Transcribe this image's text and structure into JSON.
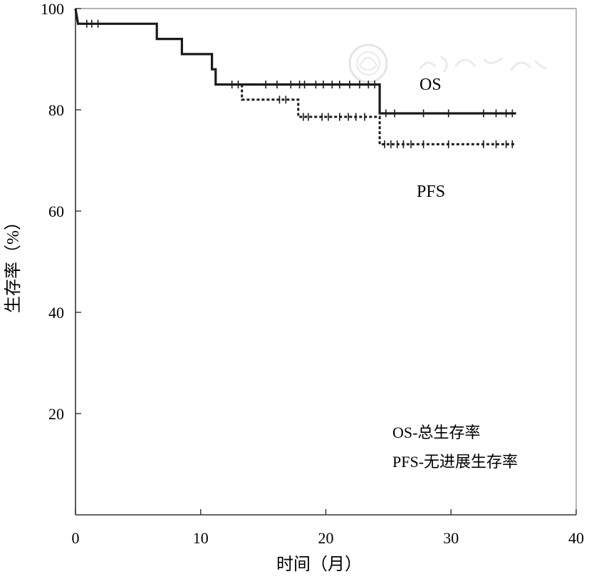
{
  "colors": {
    "line": "#1a1a1a",
    "axis": "#333333",
    "frame": "#888888",
    "watermark": "#d8d8d8"
  },
  "chart_data": {
    "type": "line",
    "title": "",
    "xlabel": "时间（月）",
    "ylabel": "生存率（%）",
    "xlim": [
      0,
      40
    ],
    "ylim": [
      0,
      100
    ],
    "x_ticks": [
      "0",
      "10",
      "20",
      "30",
      "40"
    ],
    "y_ticks": [
      "20",
      "40",
      "60",
      "80",
      "100"
    ],
    "series": [
      {
        "name": "OS",
        "style": "solid",
        "steps": [
          [
            0,
            100
          ],
          [
            0.2,
            97
          ],
          [
            6.5,
            97
          ],
          [
            6.5,
            94
          ],
          [
            8.5,
            94
          ],
          [
            8.5,
            91
          ],
          [
            10.9,
            91
          ],
          [
            10.9,
            88
          ],
          [
            11.2,
            88
          ],
          [
            11.2,
            85
          ],
          [
            24.3,
            85
          ],
          [
            24.3,
            79.3
          ],
          [
            35.2,
            79.3
          ]
        ],
        "censored": [
          0.9,
          1.3,
          1.8,
          12.5,
          13.0,
          15.2,
          16.1,
          17.2,
          17.9,
          18.3,
          19.2,
          19.8,
          20.5,
          21.1,
          21.9,
          22.7,
          23.4,
          23.9,
          24.8,
          25.5,
          27.8,
          29.8,
          32.6,
          33.6,
          34.4,
          34.9
        ]
      },
      {
        "name": "PFS",
        "style": "dotted",
        "steps": [
          [
            13.3,
            85
          ],
          [
            13.3,
            82
          ],
          [
            17.8,
            82
          ],
          [
            17.8,
            78.6
          ],
          [
            24.3,
            78.6
          ],
          [
            24.3,
            73.2
          ],
          [
            35.2,
            73.2
          ]
        ],
        "censored": [
          16.3,
          16.8,
          18.2,
          18.6,
          19.7,
          20.2,
          21.1,
          21.8,
          22.4,
          23.1,
          24.7,
          25.2,
          25.7,
          26.2,
          26.8,
          27.8,
          29.8,
          32.6,
          33.6,
          34.4,
          34.9
        ]
      }
    ],
    "annotations": {
      "os_label": "OS",
      "pfs_label": "PFS",
      "legend": [
        "OS-总生存率",
        "PFS-无进展生存率"
      ]
    }
  }
}
